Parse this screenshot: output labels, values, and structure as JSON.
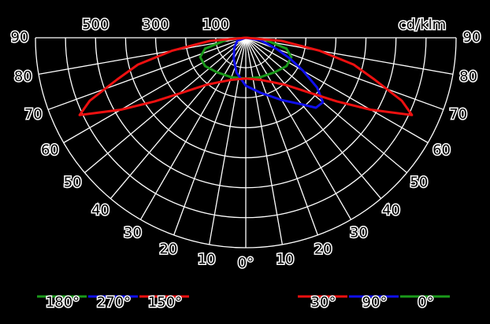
{
  "chart_data": {
    "type": "polar",
    "radial_unit": "cd/klm",
    "rlim": [
      0,
      700
    ],
    "rticks": [
      100,
      300,
      500
    ],
    "rgrid": [
      100,
      200,
      300,
      400,
      500,
      600,
      700
    ],
    "thetaticks": [
      {
        "value": 0,
        "label": "0°"
      },
      10,
      20,
      30,
      40,
      50,
      60,
      70,
      80,
      90
    ],
    "background": "#000000",
    "grid_color": "#ffffff",
    "series": [
      {
        "names": [
          "180°",
          "0°"
        ],
        "color": "#1a9a1a",
        "theta": [
          -90,
          -85,
          -75,
          -67,
          -55,
          -40,
          -20,
          0,
          20,
          40,
          55,
          67,
          75,
          85,
          90
        ],
        "values": [
          0,
          60,
          140,
          165,
          165,
          150,
          140,
          136,
          140,
          150,
          165,
          165,
          140,
          60,
          0
        ]
      },
      {
        "names": [
          "270°",
          "90°"
        ],
        "color": "#1010ee",
        "theta": [
          -90,
          -70,
          -50,
          -30,
          -15,
          0,
          15,
          30,
          40,
          45,
          50,
          55,
          60,
          65,
          70,
          80,
          90
        ],
        "values": [
          0,
          30,
          50,
          80,
          120,
          160,
          190,
          240,
          290,
          330,
          335,
          290,
          220,
          160,
          110,
          50,
          0
        ]
      },
      {
        "names": [
          "150°",
          "30°"
        ],
        "color": "#ee1010",
        "theta": [
          -90,
          -85,
          -80,
          -76,
          -72,
          -68,
          -65,
          -60,
          -55,
          -50,
          -40,
          -30,
          -20,
          -10,
          0,
          10,
          20,
          30,
          40,
          50,
          55,
          60,
          65,
          68,
          72,
          76,
          80,
          85,
          90
        ],
        "values": [
          0,
          120,
          250,
          370,
          450,
          560,
          610,
          480,
          370,
          290,
          205,
          170,
          150,
          140,
          136,
          140,
          150,
          170,
          205,
          290,
          370,
          480,
          610,
          560,
          450,
          370,
          250,
          120,
          0
        ]
      }
    ]
  }
}
